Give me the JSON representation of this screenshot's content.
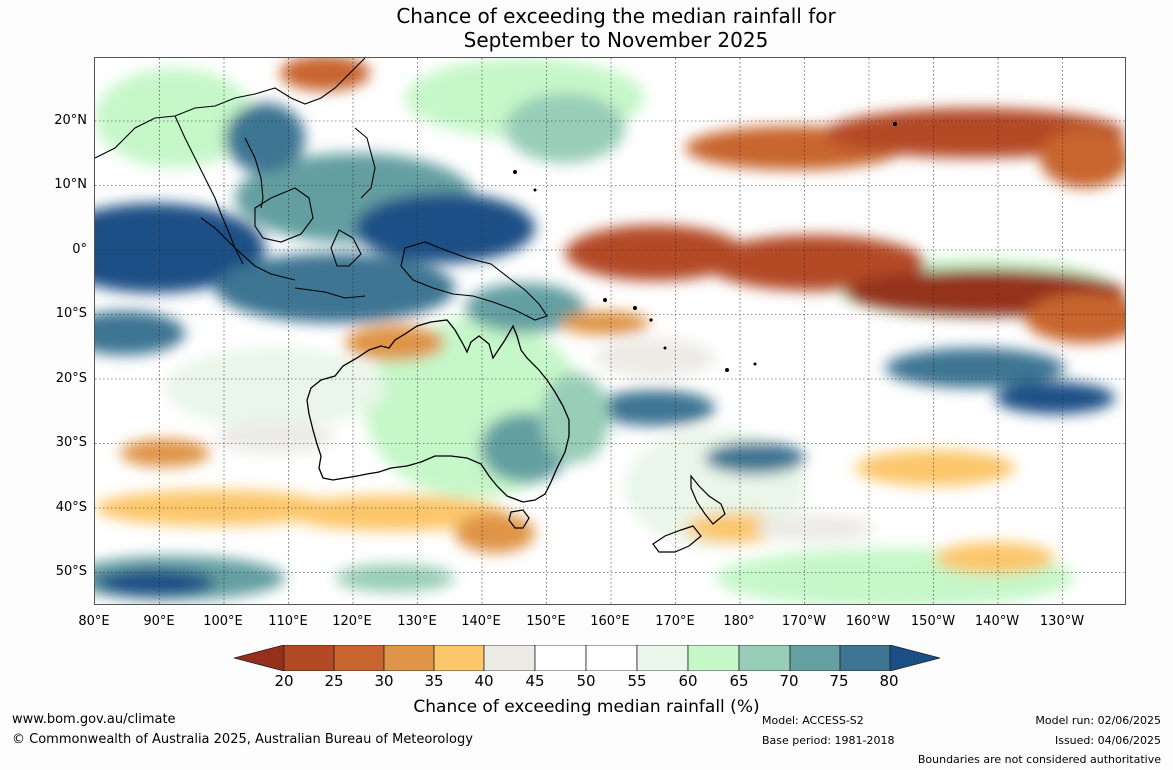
{
  "title_line1": "Chance of exceeding the median rainfall for",
  "title_line2": "September to November 2025",
  "lat_labels": [
    "20°N",
    "10°N",
    "0°",
    "10°S",
    "20°S",
    "30°S",
    "40°S",
    "50°S"
  ],
  "lon_labels": [
    "80°E",
    "90°E",
    "100°E",
    "110°E",
    "120°E",
    "130°E",
    "140°E",
    "150°E",
    "160°E",
    "170°E",
    "180°",
    "170°W",
    "160°W",
    "150°W",
    "140°W",
    "130°W"
  ],
  "colorbar": {
    "ticks": [
      "20",
      "25",
      "30",
      "35",
      "40",
      "45",
      "50",
      "55",
      "60",
      "65",
      "70",
      "75",
      "80"
    ],
    "colors": [
      "#94301c",
      "#b44a25",
      "#c8652f",
      "#df9447",
      "#fcc66a",
      "#ecebe6",
      "#ffffff",
      "#ffffff",
      "#e9f6e9",
      "#c6f7c9",
      "#98cdb8",
      "#649fa1",
      "#3d7593",
      "#1a4f86"
    ],
    "label": "Chance of exceeding median rainfall (%)"
  },
  "footer": {
    "url": "www.bom.gov.au/climate",
    "copyright": "© Commonwealth of Australia 2025, Australian Bureau of Meteorology",
    "model": "Model: ACCESS-S2",
    "base_period": "Base period: 1981-2018",
    "model_run": "Model run: 02/06/2025",
    "issued": "Issued: 04/06/2025",
    "disclaimer": "Boundaries are not considered authoritative"
  },
  "map_regions": [
    {
      "name": "west-pacific-wet-band",
      "value": 80
    },
    {
      "name": "maritime-continent-wet",
      "value": 75
    },
    {
      "name": "equatorial-pacific-dry-band",
      "value": 20
    },
    {
      "name": "north-pacific-dry-band",
      "value": 25
    },
    {
      "name": "eastern-australia-wet",
      "value": 70
    },
    {
      "name": "south-pacific-wet-band",
      "value": 75
    },
    {
      "name": "southern-ocean-dry-band",
      "value": 35
    }
  ]
}
